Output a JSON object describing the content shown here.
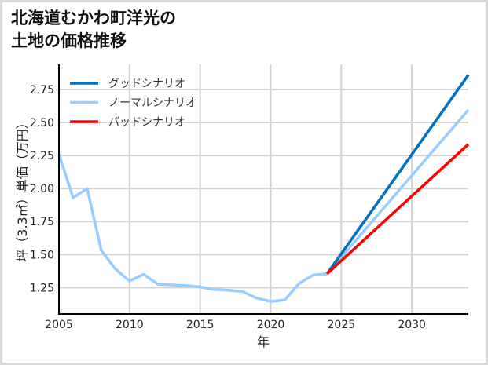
{
  "title_lines": [
    "北海道むかわ町洋光の",
    "土地の価格推移"
  ],
  "chart_data": {
    "type": "line",
    "title": "北海道むかわ町洋光の土地の価格推移",
    "xlabel": "年",
    "ylabel": "坪（3.3㎡）単価（万円）",
    "xlim": [
      2005,
      2034
    ],
    "ylim": [
      1.05,
      2.94
    ],
    "xticks": [
      2005,
      2010,
      2015,
      2020,
      2025,
      2030
    ],
    "xtick_labels": [
      "2005",
      "2010",
      "2015",
      "2020",
      "2025",
      "2030"
    ],
    "yticks": [
      1.25,
      1.5,
      1.75,
      2.0,
      2.25,
      2.5,
      2.75
    ],
    "ytick_labels": [
      "1.25",
      "1.50",
      "1.75",
      "2.00",
      "2.25",
      "2.50",
      "2.75"
    ],
    "grid": true,
    "legend_position": "upper left",
    "series": [
      {
        "name": "グッドシナリオ",
        "color": "#0070C0",
        "x": [
          2024,
          2034
        ],
        "values": [
          1.355,
          2.86
        ]
      },
      {
        "name": "ノーマルシナリオ",
        "color": "#99CCFF",
        "x": [
          2005,
          2006,
          2007,
          2008,
          2009,
          2010,
          2011,
          2012,
          2013,
          2014,
          2015,
          2016,
          2017,
          2018,
          2019,
          2020,
          2021,
          2022,
          2023,
          2024,
          2034
        ],
        "values": [
          2.26,
          1.93,
          2.0,
          1.53,
          1.39,
          1.3,
          1.35,
          1.275,
          1.27,
          1.265,
          1.255,
          1.235,
          1.23,
          1.22,
          1.17,
          1.145,
          1.155,
          1.28,
          1.345,
          1.355,
          2.595
        ]
      },
      {
        "name": "バッドシナリオ",
        "color": "#FF0000",
        "x": [
          2024,
          2034
        ],
        "values": [
          1.355,
          2.335
        ]
      }
    ],
    "legend_order": [
      0,
      1,
      2
    ]
  }
}
